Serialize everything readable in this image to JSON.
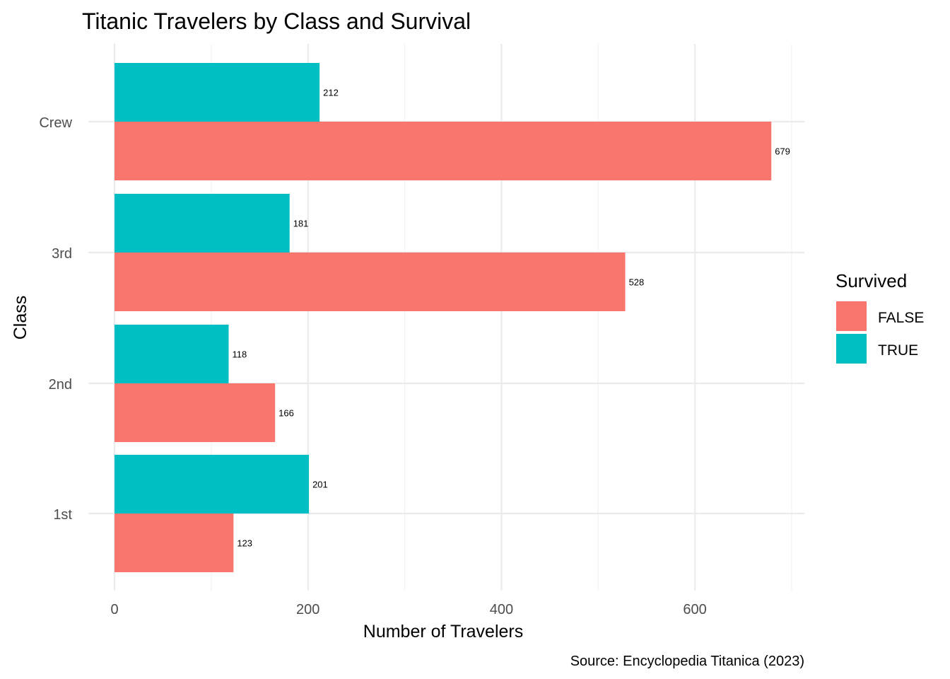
{
  "chart_data": {
    "type": "bar",
    "orientation": "horizontal",
    "title": "Titanic Travelers by Class and Survival",
    "xlabel": "Number of Travelers",
    "ylabel": "Class",
    "caption": "Source: Encyclopedia Titanica (2023)",
    "categories": [
      "1st",
      "2nd",
      "3rd",
      "Crew"
    ],
    "xlim": [
      0,
      700
    ],
    "x_ticks": [
      0,
      200,
      400,
      600
    ],
    "grid": true,
    "legend": {
      "title": "Survived",
      "position": "right",
      "entries": [
        "FALSE",
        "TRUE"
      ]
    },
    "series": [
      {
        "name": "FALSE",
        "color": "#F8766D",
        "values": [
          123,
          166,
          528,
          679
        ]
      },
      {
        "name": "TRUE",
        "color": "#00BFC4",
        "values": [
          201,
          118,
          181,
          212
        ]
      }
    ]
  }
}
